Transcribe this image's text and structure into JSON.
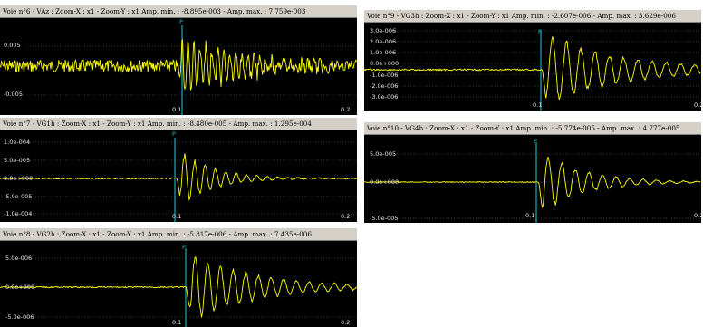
{
  "colors": {
    "trace": "#ffff00",
    "marker": "#1fa9b8",
    "background": "#000000",
    "grid": "#6f6f6f"
  },
  "panels": [
    {
      "title": "Voie n°6 - VAz : Zoom-X : x1 - Zoom-Y : x1   Amp. min. : -8.895e-003 - Amp. max. : 7.759e-003",
      "yticks": [
        "0.005",
        "-0.005"
      ],
      "xticks": [
        "0.1",
        "0.2"
      ],
      "marker_label": "P"
    },
    {
      "title": "Voie n°7 - VG1h : Zoom-X : x1 - Zoom-Y : x1   Amp. min. : -8.480e-005 - Amp. max. : 1.295e-004",
      "yticks": [
        "1.0e-004",
        "5.0e-005",
        "0.0e+000",
        "-5.0e-005",
        "-1.0e-004"
      ],
      "xticks": [
        "0.1",
        "0.2"
      ],
      "marker_label": "P"
    },
    {
      "title": "Voie n°8 - VG2h : Zoom-X : x1 - Zoom-Y : x1   Amp. min. : -5.817e-006 - Amp. max. : 7.435e-006",
      "yticks": [
        "5.0e-006",
        "0.0e+000",
        "-5.0e-006"
      ],
      "xticks": [
        "0.1",
        "0.2"
      ],
      "marker_label": "P"
    },
    {
      "title": "Voie n°9 - VG3h : Zoom-X : x1 - Zoom-Y : x1   Amp. min. : -2.607e-006 - Amp. max. : 3.629e-006",
      "yticks": [
        "3.0e-006",
        "2.0e-006",
        "1.0e-006",
        "0.0e+000",
        "-1.0e-006",
        "-2.0e-006",
        "-3.0e-006"
      ],
      "xticks": [
        "0.1",
        "0.2"
      ],
      "marker_label": "P"
    },
    {
      "title": "Voie n°10 - VG4h : Zoom-X : x1 - Zoom-Y : x1   Amp. min. : -5.774e-005 - Amp. max. : 4.777e-005",
      "yticks": [
        "5.0e-005",
        "0.0e+000",
        "-5.0e-005"
      ],
      "xticks": [
        "0.1",
        "0.2"
      ],
      "marker_label": "P"
    }
  ]
}
